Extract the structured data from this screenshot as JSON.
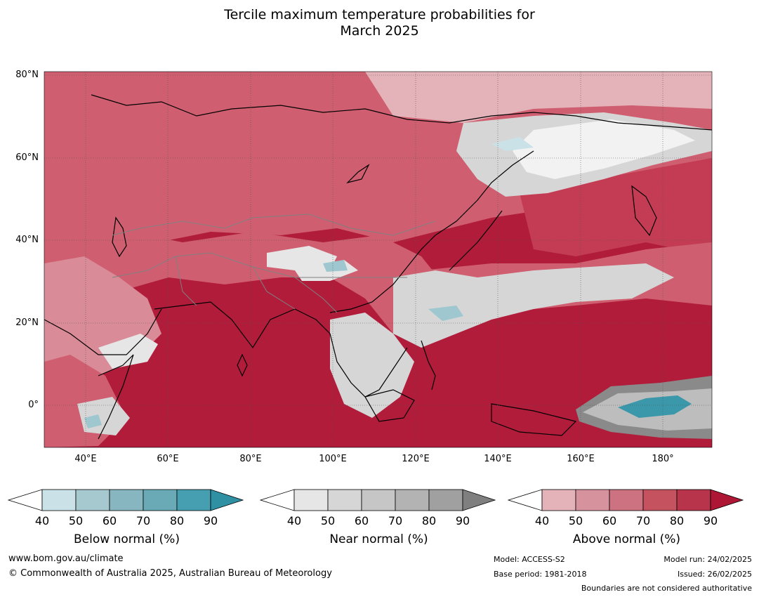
{
  "title": {
    "line1": "Tercile maximum temperature probabilities for",
    "line2": "March 2025"
  },
  "map": {
    "lat_labels": [
      "80°N",
      "60°N",
      "40°N",
      "20°N",
      "0°"
    ],
    "lon_labels": [
      "40°E",
      "60°E",
      "80°E",
      "100°E",
      "120°E",
      "140°E",
      "160°E",
      "180°"
    ],
    "colors": {
      "above_90": "#b01c3a",
      "above_80": "#c43c54",
      "above_70": "#cf5f70",
      "above_60": "#d98b97",
      "above_50": "#e3b3b9",
      "near": "#d6d6d6",
      "near_dark": "#8a8a8a",
      "below": "#9ec7d0",
      "below_dark": "#3a98aa",
      "coast": "#000000",
      "border": "#808080"
    }
  },
  "legend": [
    {
      "caption": "Below normal (%)",
      "ticks": [
        "40",
        "50",
        "60",
        "70",
        "80",
        "90"
      ],
      "colors": [
        "#ffffff",
        "#c9e1e7",
        "#a6c8cf",
        "#87b6c0",
        "#6aa9b6",
        "#459fb0",
        "#2f8fa3"
      ]
    },
    {
      "caption": "Near normal (%)",
      "ticks": [
        "40",
        "50",
        "60",
        "70",
        "80",
        "90"
      ],
      "colors": [
        "#ffffff",
        "#e6e6e6",
        "#d6d6d6",
        "#c6c6c6",
        "#b3b3b3",
        "#a0a0a0",
        "#7f7f7f"
      ]
    },
    {
      "caption": "Above normal (%)",
      "ticks": [
        "40",
        "50",
        "60",
        "70",
        "80",
        "90"
      ],
      "colors": [
        "#ffffff",
        "#e3b3b9",
        "#d6939d",
        "#cc7280",
        "#c5525f",
        "#b8344b",
        "#ad1634"
      ]
    }
  ],
  "footer": {
    "website": "www.bom.gov.au/climate",
    "copyright": "© Commonwealth of Australia 2025, Australian Bureau of Meteorology",
    "model": "Model: ACCESS-S2",
    "base_period": "Base period: 1981-2018",
    "model_run": "Model run: 24/02/2025",
    "issued": "Issued: 26/02/2025",
    "disclaimer": "Boundaries are not considered authoritative"
  }
}
